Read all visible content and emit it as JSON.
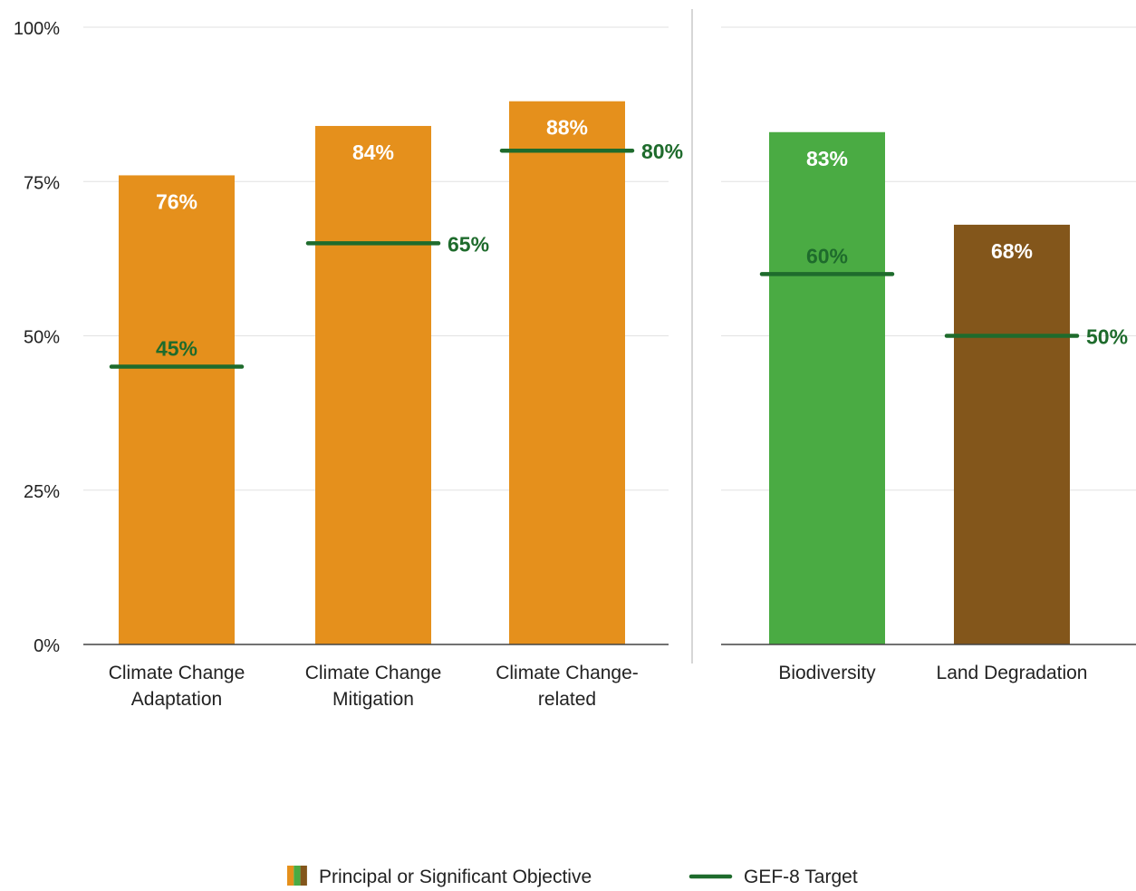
{
  "chart_data": {
    "type": "bar",
    "y_ticks": [
      "0%",
      "25%",
      "50%",
      "75%",
      "100%"
    ],
    "ylim": [
      0,
      100
    ],
    "grid": true,
    "panels": [
      {
        "categories": [
          [
            "Climate Change",
            "Adaptation"
          ],
          [
            "Climate Change",
            "Mitigation"
          ],
          [
            "Climate Change-",
            "related"
          ]
        ],
        "values": [
          76,
          84,
          88
        ],
        "value_labels": [
          "76%",
          "84%",
          "88%"
        ],
        "targets": [
          45,
          65,
          80
        ],
        "target_labels": [
          "45%",
          "65%",
          "80%"
        ],
        "colors": [
          "#e5901c",
          "#e5901c",
          "#e5901c"
        ]
      },
      {
        "categories": [
          [
            "Biodiversity"
          ],
          [
            "Land Degradation"
          ]
        ],
        "values": [
          83,
          68
        ],
        "value_labels": [
          "83%",
          "68%"
        ],
        "targets": [
          60,
          50
        ],
        "target_labels": [
          "60%",
          "50%"
        ],
        "colors": [
          "#4aab43",
          "#83561b"
        ]
      }
    ],
    "target_color": "#1e6b2c",
    "legend": {
      "placement": "bottom",
      "items": [
        {
          "label": "Principal or Significant Objective",
          "swatch": [
            "#e5901c",
            "#4aab43",
            "#83561b"
          ]
        },
        {
          "label": "GEF-8 Target",
          "swatch": [
            "#1e6b2c"
          ]
        }
      ]
    }
  }
}
